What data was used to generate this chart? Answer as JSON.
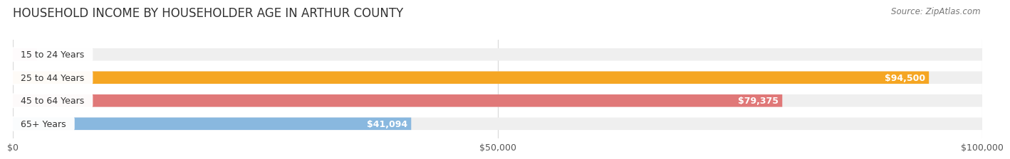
{
  "title": "HOUSEHOLD INCOME BY HOUSEHOLDER AGE IN ARTHUR COUNTY",
  "source": "Source: ZipAtlas.com",
  "categories": [
    "15 to 24 Years",
    "25 to 44 Years",
    "45 to 64 Years",
    "65+ Years"
  ],
  "values": [
    0,
    94500,
    79375,
    41094
  ],
  "bar_colors": [
    "#f4a0b5",
    "#f5a623",
    "#e07878",
    "#89b8df"
  ],
  "bar_bg_color": "#efefef",
  "xlim": [
    0,
    100000
  ],
  "xtick_labels": [
    "$0",
    "$50,000",
    "$100,000"
  ],
  "xtick_values": [
    0,
    50000,
    100000
  ],
  "title_fontsize": 12,
  "label_fontsize": 9,
  "value_fontsize": 9,
  "source_fontsize": 8.5,
  "bar_height": 0.54,
  "background_color": "#ffffff",
  "grid_color": "#d8d8d8"
}
